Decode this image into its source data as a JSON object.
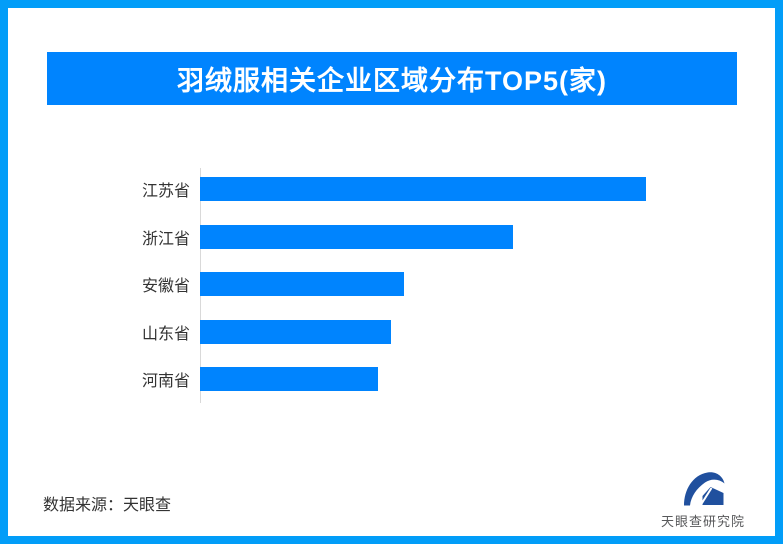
{
  "page": {
    "border_color": "#029df8",
    "background_color": "#ffffff"
  },
  "header": {
    "title": "羽绒服相关企业区域分布TOP5(家)",
    "bg_color": "#0084fe",
    "text_color": "#ffffff"
  },
  "chart_data": {
    "type": "bar",
    "orientation": "horizontal",
    "title": "羽绒服相关企业区域分布TOP5(家)",
    "categories": [
      "江苏省",
      "浙江省",
      "安徽省",
      "山东省",
      "河南省"
    ],
    "values": [
      446,
      313,
      204,
      191,
      178
    ],
    "values_are_relative_lengths": true,
    "value_labels_shown": false,
    "xlabel": "",
    "ylabel": "",
    "xlim": [
      0,
      540
    ],
    "grid": false,
    "legend": false,
    "bar_color": "#0084fe",
    "axis_line_color": "#d9d9d9",
    "label_color": "#333333"
  },
  "footer": {
    "source_label": "数据来源：天眼查",
    "logo_text": "天眼查研究院",
    "logo_icon": "tianyancha-eye-icon",
    "logo_icon_color": "#20509e",
    "logo_text_color": "#58595b"
  }
}
